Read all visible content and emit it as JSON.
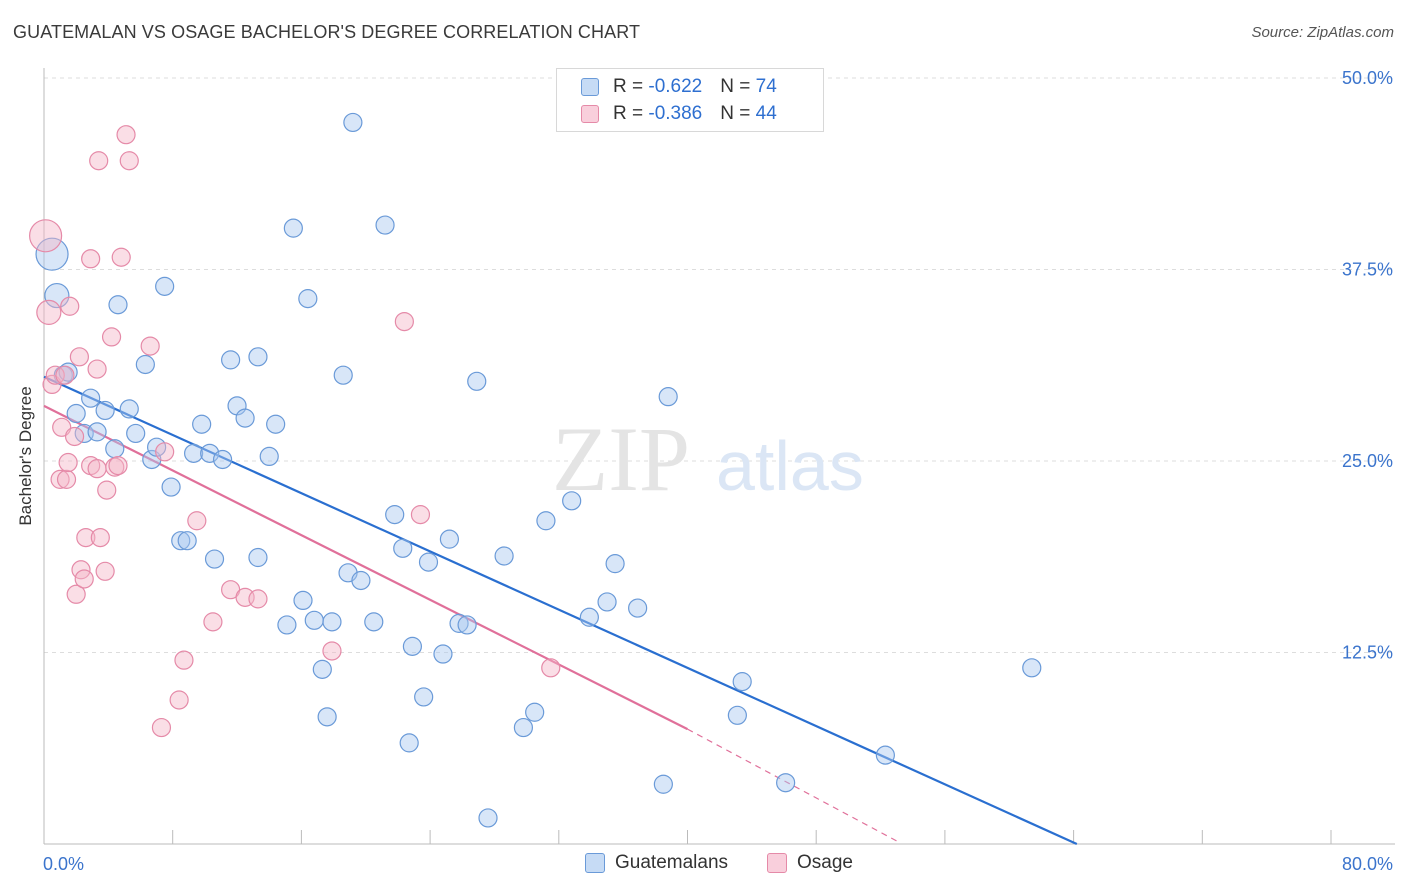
{
  "header": {
    "title": "GUATEMALAN VS OSAGE BACHELOR'S DEGREE CORRELATION CHART",
    "source": "Source: ZipAtlas.com"
  },
  "watermark": {
    "zip": "ZIP",
    "atlas": "atlas"
  },
  "colors": {
    "blue_fill": "#a9c8f0",
    "blue_stroke": "#6a9ad8",
    "blue_line": "#2a6fd0",
    "pink_fill": "#f4b6c8",
    "pink_stroke": "#e58aa8",
    "pink_line": "#e0709a",
    "tick_text": "#3b74cc",
    "grid": "#dddddd"
  },
  "legend_top": {
    "rows": [
      {
        "r_label": "R = ",
        "r_value": "-0.622",
        "n_label": "N = ",
        "n_value": "74"
      },
      {
        "r_label": "R = ",
        "r_value": "-0.386",
        "n_label": "N = ",
        "n_value": "44"
      }
    ]
  },
  "legend_bottom": [
    "Guatemalans",
    "Osage"
  ],
  "chart_data": {
    "type": "scatter",
    "title": "GUATEMALAN VS OSAGE BACHELOR'S DEGREE CORRELATION CHART",
    "ylabel": "Bachelor's Degree",
    "xlabel": "",
    "xlim": [
      0,
      80
    ],
    "ylim": [
      0,
      50
    ],
    "x_tick_labels": [
      "0.0%",
      "80.0%"
    ],
    "y_tick_labels": [
      "12.5%",
      "25.0%",
      "37.5%",
      "50.0%"
    ],
    "y_ticks": [
      12.5,
      25.0,
      37.5,
      50.0
    ],
    "grid": "horizontal dashed",
    "legend_position": "top-center",
    "series": [
      {
        "name": "Guatemalans",
        "R": -0.622,
        "N": 74,
        "trend": {
          "x0": 0,
          "y0": 30.5,
          "x1": 64.2,
          "y1": 0
        },
        "points": [
          [
            0.5,
            38.5
          ],
          [
            0.8,
            35.8
          ],
          [
            1.2,
            30.6
          ],
          [
            1.5,
            30.8
          ],
          [
            2.0,
            28.1
          ],
          [
            2.5,
            26.8
          ],
          [
            2.9,
            29.1
          ],
          [
            3.3,
            26.9
          ],
          [
            3.8,
            28.3
          ],
          [
            4.4,
            25.8
          ],
          [
            4.6,
            35.2
          ],
          [
            5.3,
            28.4
          ],
          [
            5.7,
            26.8
          ],
          [
            6.3,
            31.3
          ],
          [
            6.7,
            25.1
          ],
          [
            7.0,
            25.9
          ],
          [
            7.5,
            36.4
          ],
          [
            7.9,
            23.3
          ],
          [
            8.5,
            19.8
          ],
          [
            8.9,
            19.8
          ],
          [
            9.3,
            25.5
          ],
          [
            9.8,
            27.4
          ],
          [
            10.3,
            25.5
          ],
          [
            10.6,
            18.6
          ],
          [
            11.1,
            25.1
          ],
          [
            11.6,
            31.6
          ],
          [
            12.0,
            28.6
          ],
          [
            12.5,
            27.8
          ],
          [
            13.3,
            18.7
          ],
          [
            13.3,
            31.8
          ],
          [
            14.0,
            25.3
          ],
          [
            14.4,
            27.4
          ],
          [
            15.1,
            14.3
          ],
          [
            15.5,
            40.2
          ],
          [
            16.1,
            15.9
          ],
          [
            16.4,
            35.6
          ],
          [
            16.8,
            14.6
          ],
          [
            17.3,
            11.4
          ],
          [
            17.6,
            8.3
          ],
          [
            17.9,
            14.5
          ],
          [
            18.6,
            30.6
          ],
          [
            18.9,
            17.7
          ],
          [
            19.2,
            47.1
          ],
          [
            19.7,
            17.2
          ],
          [
            20.5,
            14.5
          ],
          [
            21.2,
            40.4
          ],
          [
            21.8,
            21.5
          ],
          [
            22.3,
            19.3
          ],
          [
            22.7,
            6.6
          ],
          [
            22.9,
            12.9
          ],
          [
            23.6,
            9.6
          ],
          [
            23.9,
            18.4
          ],
          [
            24.8,
            12.4
          ],
          [
            25.2,
            19.9
          ],
          [
            25.8,
            14.4
          ],
          [
            26.3,
            14.3
          ],
          [
            26.9,
            30.2
          ],
          [
            27.6,
            1.7
          ],
          [
            28.6,
            18.8
          ],
          [
            29.8,
            7.6
          ],
          [
            30.5,
            8.6
          ],
          [
            31.2,
            21.1
          ],
          [
            32.8,
            22.4
          ],
          [
            33.9,
            14.8
          ],
          [
            35.0,
            15.8
          ],
          [
            35.5,
            18.3
          ],
          [
            36.9,
            15.4
          ],
          [
            38.5,
            3.9
          ],
          [
            38.8,
            29.2
          ],
          [
            43.1,
            8.4
          ],
          [
            43.4,
            10.6
          ],
          [
            46.1,
            4.0
          ],
          [
            52.3,
            5.8
          ],
          [
            61.4,
            11.5
          ]
        ],
        "large_points": [
          0,
          1
        ]
      },
      {
        "name": "Osage",
        "R": -0.386,
        "N": 44,
        "trend": {
          "x0": 0,
          "y0": 28.6,
          "x1": 40.0,
          "y1": 7.5
        },
        "trend_dashed": {
          "x0": 40.0,
          "y0": 7.5,
          "x1": 53.0,
          "y1": 0.2
        },
        "points": [
          [
            0.1,
            39.7
          ],
          [
            0.3,
            34.7
          ],
          [
            0.5,
            30.0
          ],
          [
            0.7,
            30.6
          ],
          [
            1.0,
            23.8
          ],
          [
            1.1,
            27.2
          ],
          [
            1.3,
            30.6
          ],
          [
            1.4,
            23.8
          ],
          [
            1.5,
            24.9
          ],
          [
            1.6,
            35.1
          ],
          [
            1.9,
            26.6
          ],
          [
            2.0,
            16.3
          ],
          [
            2.2,
            31.8
          ],
          [
            2.3,
            17.9
          ],
          [
            2.5,
            17.3
          ],
          [
            2.6,
            20.0
          ],
          [
            2.9,
            24.7
          ],
          [
            2.9,
            38.2
          ],
          [
            3.3,
            24.5
          ],
          [
            3.3,
            31.0
          ],
          [
            3.4,
            44.6
          ],
          [
            3.5,
            20.0
          ],
          [
            3.8,
            17.8
          ],
          [
            3.9,
            23.1
          ],
          [
            4.2,
            33.1
          ],
          [
            4.4,
            24.6
          ],
          [
            4.6,
            24.7
          ],
          [
            4.8,
            38.3
          ],
          [
            5.1,
            46.3
          ],
          [
            5.3,
            44.6
          ],
          [
            6.6,
            32.5
          ],
          [
            7.3,
            7.6
          ],
          [
            7.5,
            25.6
          ],
          [
            8.4,
            9.4
          ],
          [
            8.7,
            12.0
          ],
          [
            9.5,
            21.1
          ],
          [
            10.5,
            14.5
          ],
          [
            11.6,
            16.6
          ],
          [
            12.5,
            16.1
          ],
          [
            13.3,
            16.0
          ],
          [
            17.9,
            12.6
          ],
          [
            22.4,
            34.1
          ],
          [
            23.4,
            21.5
          ],
          [
            31.5,
            11.5
          ]
        ],
        "large_points": [
          0,
          1
        ]
      }
    ]
  }
}
